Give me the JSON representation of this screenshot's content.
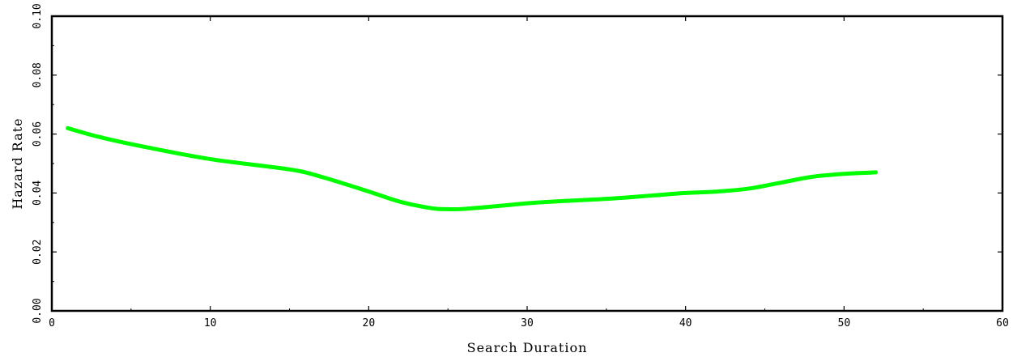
{
  "chart_data": {
    "type": "line",
    "title": "",
    "xlabel": "Search Duration",
    "ylabel": "Hazard Rate",
    "xlim": [
      0,
      60
    ],
    "ylim": [
      0,
      0.1
    ],
    "xticks": [
      0,
      10,
      20,
      30,
      40,
      50,
      60
    ],
    "yticks": [
      0.0,
      0.02,
      0.04,
      0.06,
      0.08,
      0.1
    ],
    "xtick_labels": [
      "0",
      "10",
      "20",
      "30",
      "40",
      "50",
      "60"
    ],
    "ytick_labels": [
      "0.00",
      "0.02",
      "0.04",
      "0.06",
      "0.08",
      "0.10"
    ],
    "grid": false,
    "series": [
      {
        "color": "#00ff00",
        "x": [
          1,
          3,
          6,
          10,
          15,
          17,
          20,
          22,
          24,
          25,
          26,
          28,
          30,
          32,
          35,
          38,
          40,
          42,
          44,
          46,
          48,
          50,
          52
        ],
        "y": [
          0.062,
          0.059,
          0.0555,
          0.0515,
          0.048,
          0.0455,
          0.0405,
          0.037,
          0.0348,
          0.0345,
          0.0346,
          0.0355,
          0.0365,
          0.0372,
          0.038,
          0.0392,
          0.04,
          0.0405,
          0.0415,
          0.0435,
          0.0455,
          0.0465,
          0.047
        ]
      }
    ]
  }
}
